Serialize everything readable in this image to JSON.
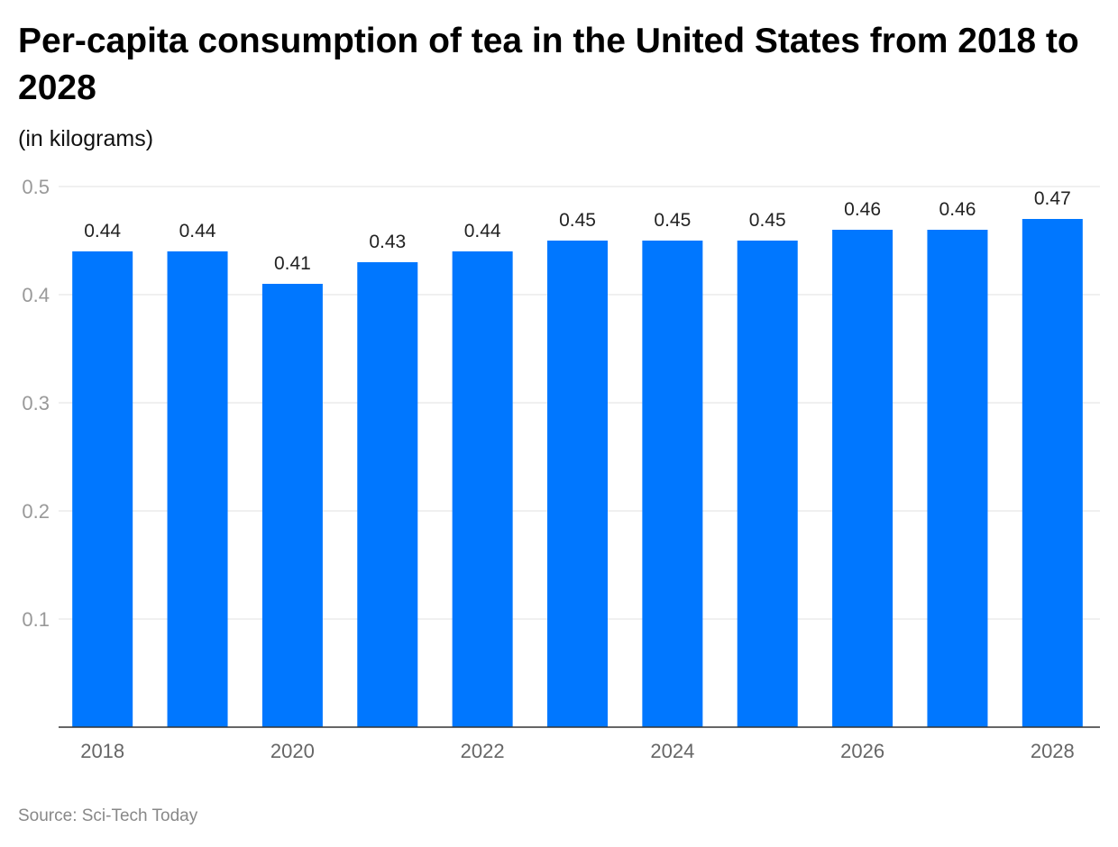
{
  "title": "Per-capita consumption of tea in the United States from 2018 to 2028",
  "subtitle": "(in kilograms)",
  "source": "Source: Sci-Tech Today",
  "chart_data": {
    "type": "bar",
    "title": "Per-capita consumption of tea in the United States from 2018 to 2028",
    "ylabel": "(in kilograms)",
    "xlabel": "",
    "categories": [
      "2018",
      "2019",
      "2020",
      "2021",
      "2022",
      "2023",
      "2024",
      "2025",
      "2026",
      "2027",
      "2028"
    ],
    "x_tick_labels": [
      "2018",
      "",
      "2020",
      "",
      "2022",
      "",
      "2024",
      "",
      "2026",
      "",
      "2028"
    ],
    "values": [
      0.44,
      0.44,
      0.41,
      0.43,
      0.44,
      0.45,
      0.45,
      0.45,
      0.46,
      0.46,
      0.47
    ],
    "data_labels": [
      "0.44",
      "0.44",
      "0.41",
      "0.43",
      "0.44",
      "0.45",
      "0.45",
      "0.45",
      "0.46",
      "0.46",
      "0.47"
    ],
    "y_ticks": [
      "0.1",
      "0.2",
      "0.3",
      "0.4",
      "0.5"
    ],
    "ylim": [
      0,
      0.5
    ],
    "grid": true,
    "bar_color": "#0077ff"
  }
}
